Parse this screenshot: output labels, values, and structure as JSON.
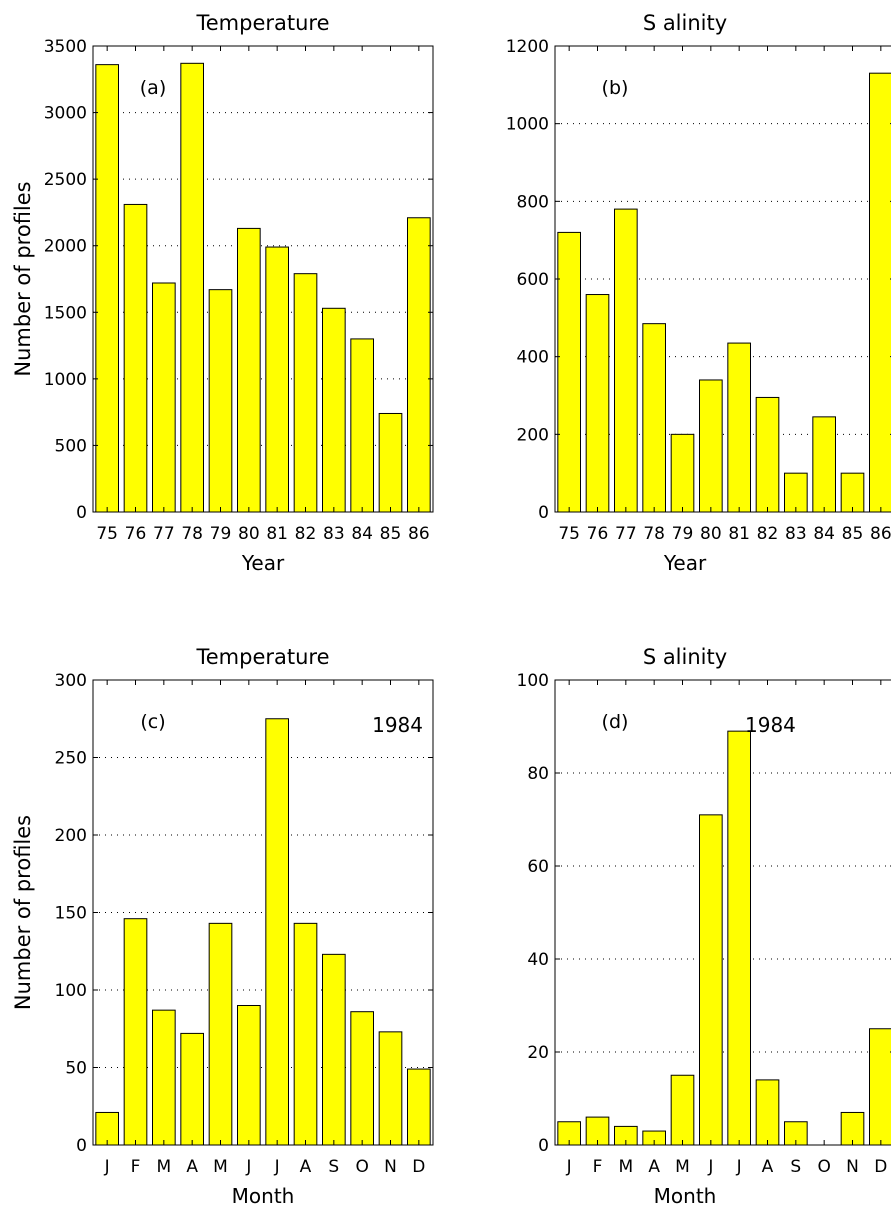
{
  "chart_data": [
    {
      "type": "bar",
      "title": "Temperature",
      "panel_label": "(a)",
      "annotation": "",
      "xlabel": "Year",
      "ylabel": "Number  of  profiles",
      "categories": [
        "75",
        "76",
        "77",
        "78",
        "79",
        "80",
        "81",
        "82",
        "83",
        "84",
        "85",
        "86"
      ],
      "values": [
        3360,
        2310,
        1720,
        3370,
        1670,
        2130,
        1990,
        1790,
        1530,
        1300,
        740,
        2210
      ],
      "ylim": [
        0,
        3500
      ],
      "yticks": [
        0,
        500,
        1000,
        1500,
        2000,
        2500,
        3000,
        3500
      ],
      "grid": true
    },
    {
      "type": "bar",
      "title": "S alinity",
      "panel_label": "(b)",
      "annotation": "",
      "xlabel": "Year",
      "ylabel": "",
      "categories": [
        "75",
        "76",
        "77",
        "78",
        "79",
        "80",
        "81",
        "82",
        "83",
        "84",
        "85",
        "86"
      ],
      "values": [
        720,
        560,
        780,
        485,
        200,
        340,
        435,
        295,
        100,
        245,
        100,
        1130
      ],
      "ylim": [
        0,
        1200
      ],
      "yticks": [
        0,
        200,
        400,
        600,
        800,
        1000,
        1200
      ],
      "grid": true
    },
    {
      "type": "bar",
      "title": "Temperature",
      "panel_label": "(c)",
      "annotation": "1984",
      "xlabel": "Month",
      "ylabel": "Number  of  profiles",
      "categories": [
        "J",
        "F",
        "M",
        "A",
        "M",
        "J",
        "J",
        "A",
        "S",
        "O",
        "N",
        "D"
      ],
      "values": [
        21,
        146,
        87,
        72,
        143,
        90,
        275,
        143,
        123,
        86,
        73,
        49
      ],
      "ylim": [
        0,
        300
      ],
      "yticks": [
        0,
        50,
        100,
        150,
        200,
        250,
        300
      ],
      "grid": true
    },
    {
      "type": "bar",
      "title": "S alinity",
      "panel_label": "(d)",
      "annotation": "1984",
      "xlabel": "Month",
      "ylabel": "",
      "categories": [
        "J",
        "F",
        "M",
        "A",
        "M",
        "J",
        "J",
        "A",
        "S",
        "O",
        "N",
        "D"
      ],
      "values": [
        5,
        6,
        4,
        3,
        15,
        71,
        89,
        14,
        5,
        0,
        7,
        25
      ],
      "ylim": [
        0,
        100
      ],
      "yticks": [
        0,
        20,
        40,
        60,
        80,
        100
      ],
      "grid": true
    }
  ]
}
